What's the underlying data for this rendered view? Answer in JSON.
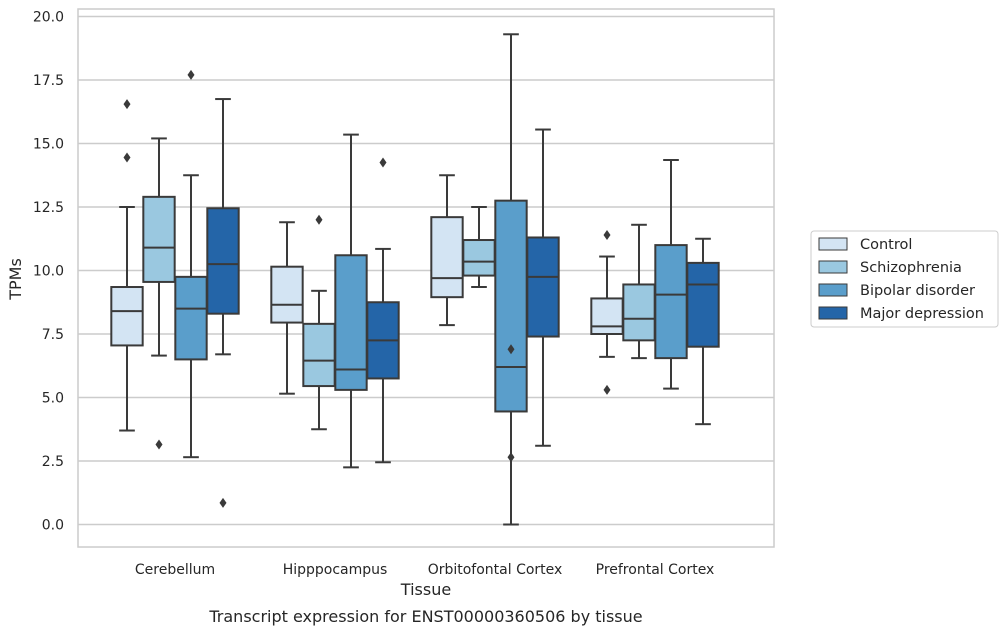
{
  "caption": "Transcript expression for ENST00000360506 by tissue",
  "chart_data": {
    "type": "boxplot",
    "title": "",
    "xlabel": "Tissue",
    "ylabel": "TPMs",
    "ylim": [
      -0.9,
      20.4
    ],
    "yticks": [
      "0.0",
      "2.5",
      "5.0",
      "7.5",
      "10.0",
      "12.5",
      "15.0",
      "17.5",
      "20.0"
    ],
    "grid": "horizontal",
    "legend_position": "right",
    "categories": [
      "Cerebellum",
      "Hipppocampus",
      "Orbitofontal Cortex",
      "Prefrontal Cortex"
    ],
    "series": [
      {
        "name": "Control",
        "color": "#d3e4f3",
        "boxes": [
          {
            "whislo": 3.7,
            "q1": 7.05,
            "med": 8.4,
            "q3": 9.35,
            "whishi": 12.5,
            "fliers": [
              14.45,
              16.55
            ]
          },
          {
            "whislo": 5.15,
            "q1": 7.95,
            "med": 8.65,
            "q3": 10.15,
            "whishi": 11.9,
            "fliers": []
          },
          {
            "whislo": 7.85,
            "q1": 8.95,
            "med": 9.7,
            "q3": 12.1,
            "whishi": 13.75,
            "fliers": []
          },
          {
            "whislo": 6.6,
            "q1": 7.5,
            "med": 7.8,
            "q3": 8.9,
            "whishi": 10.55,
            "fliers": [
              5.3,
              11.4
            ]
          }
        ]
      },
      {
        "name": "Schizophrenia",
        "color": "#9ac8e0",
        "boxes": [
          {
            "whislo": 6.65,
            "q1": 9.55,
            "med": 10.9,
            "q3": 12.9,
            "whishi": 15.2,
            "fliers": [
              3.15
            ]
          },
          {
            "whislo": 3.75,
            "q1": 5.45,
            "med": 6.45,
            "q3": 7.9,
            "whishi": 9.2,
            "fliers": [
              12.0
            ]
          },
          {
            "whislo": 9.35,
            "q1": 9.8,
            "med": 10.35,
            "q3": 11.2,
            "whishi": 12.5,
            "fliers": []
          },
          {
            "whislo": 6.55,
            "q1": 7.25,
            "med": 8.1,
            "q3": 9.45,
            "whishi": 11.8,
            "fliers": []
          }
        ]
      },
      {
        "name": "Bipolar disorder",
        "color": "#5a9ecb",
        "boxes": [
          {
            "whislo": 2.65,
            "q1": 6.5,
            "med": 8.5,
            "q3": 9.75,
            "whishi": 13.75,
            "fliers": [
              17.7
            ]
          },
          {
            "whislo": 2.25,
            "q1": 5.3,
            "med": 6.1,
            "q3": 10.6,
            "whishi": 15.35,
            "fliers": []
          },
          {
            "whislo": 0.0,
            "q1": 4.45,
            "med": 6.2,
            "q3": 12.75,
            "whishi": 19.3,
            "fliers": [
              2.65,
              6.9
            ]
          },
          {
            "whislo": 5.35,
            "q1": 6.55,
            "med": 9.05,
            "q3": 11.0,
            "whishi": 14.35,
            "fliers": []
          }
        ]
      },
      {
        "name": "Major depression",
        "color": "#2465a8",
        "boxes": [
          {
            "whislo": 6.7,
            "q1": 8.3,
            "med": 10.25,
            "q3": 12.45,
            "whishi": 16.75,
            "fliers": [
              0.85
            ]
          },
          {
            "whislo": 2.45,
            "q1": 5.75,
            "med": 7.25,
            "q3": 8.75,
            "whishi": 10.85,
            "fliers": [
              14.25
            ]
          },
          {
            "whislo": 3.1,
            "q1": 7.4,
            "med": 9.75,
            "q3": 11.3,
            "whishi": 15.55,
            "fliers": []
          },
          {
            "whislo": 3.95,
            "q1": 7.0,
            "med": 9.45,
            "q3": 10.3,
            "whishi": 11.25,
            "fliers": []
          }
        ]
      }
    ]
  }
}
